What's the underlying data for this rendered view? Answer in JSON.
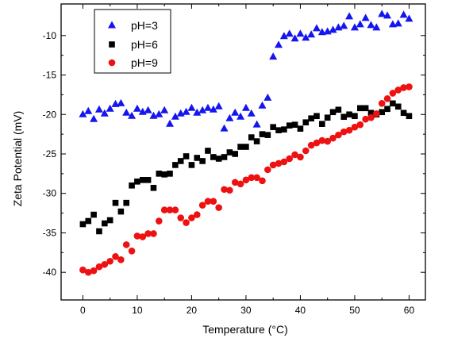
{
  "chart_data": {
    "type": "scatter",
    "title": "",
    "xlabel": "Temperature (°C)",
    "ylabel": "Zeta Potential (mV)",
    "xlim": [
      -4,
      63
    ],
    "ylim": [
      -43.5,
      -6
    ],
    "xticks": [
      0,
      10,
      20,
      30,
      40,
      50,
      60
    ],
    "yticks": [
      -40,
      -35,
      -30,
      -25,
      -20,
      -15,
      -10
    ],
    "legend_position": "top-left",
    "series": [
      {
        "name": "pH=3",
        "marker": "triangle",
        "color": "#1515f0",
        "points": [
          [
            0,
            -20
          ],
          [
            1,
            -19.6
          ],
          [
            2,
            -20.6
          ],
          [
            3,
            -19.4
          ],
          [
            4,
            -19.9
          ],
          [
            5,
            -19.3
          ],
          [
            6,
            -18.7
          ],
          [
            7,
            -18.6
          ],
          [
            8,
            -19.8
          ],
          [
            9,
            -20.2
          ],
          [
            10,
            -19.3
          ],
          [
            11,
            -19.7
          ],
          [
            12,
            -19.5
          ],
          [
            13,
            -20.2
          ],
          [
            14,
            -20
          ],
          [
            15,
            -19.5
          ],
          [
            16,
            -21.2
          ],
          [
            17,
            -20.3
          ],
          [
            18,
            -19.9
          ],
          [
            19,
            -19.7
          ],
          [
            20,
            -19.2
          ],
          [
            21,
            -19.8
          ],
          [
            22,
            -19.5
          ],
          [
            23,
            -19.2
          ],
          [
            24,
            -19.4
          ],
          [
            25,
            -19
          ],
          [
            26,
            -21.8
          ],
          [
            27,
            -20.5
          ],
          [
            28,
            -19.8
          ],
          [
            29,
            -20.3
          ],
          [
            30,
            -19.2
          ],
          [
            31,
            -19.9
          ],
          [
            32,
            -21.3
          ],
          [
            33,
            -18.9
          ],
          [
            34,
            -17.9
          ],
          [
            35,
            -12.7
          ],
          [
            36,
            -11.2
          ],
          [
            37,
            -10.1
          ],
          [
            38,
            -9.8
          ],
          [
            39,
            -10.4
          ],
          [
            40,
            -9.8
          ],
          [
            41,
            -10.3
          ],
          [
            42,
            -9.9
          ],
          [
            43,
            -9.1
          ],
          [
            44,
            -9.6
          ],
          [
            45,
            -9.5
          ],
          [
            46,
            -9.3
          ],
          [
            47,
            -9
          ],
          [
            48,
            -8.8
          ],
          [
            49,
            -7.6
          ],
          [
            50,
            -9
          ],
          [
            51,
            -8.6
          ],
          [
            52,
            -7.8
          ],
          [
            53,
            -8.7
          ],
          [
            54,
            -9
          ],
          [
            55,
            -7.3
          ],
          [
            56,
            -7.5
          ],
          [
            57,
            -8.6
          ],
          [
            58,
            -8.5
          ],
          [
            59,
            -7.4
          ],
          [
            60,
            -7.9
          ]
        ]
      },
      {
        "name": "pH=6",
        "marker": "square",
        "color": "#000000",
        "points": [
          [
            0,
            -33.9
          ],
          [
            1,
            -33.5
          ],
          [
            2,
            -32.7
          ],
          [
            3,
            -34.8
          ],
          [
            4,
            -33.8
          ],
          [
            5,
            -33.4
          ],
          [
            6,
            -31.2
          ],
          [
            7,
            -32.3
          ],
          [
            8,
            -31.2
          ],
          [
            9,
            -29
          ],
          [
            10,
            -28.5
          ],
          [
            11,
            -28.3
          ],
          [
            12,
            -28.3
          ],
          [
            13,
            -29.3
          ],
          [
            14,
            -27.5
          ],
          [
            15,
            -27.6
          ],
          [
            16,
            -27.5
          ],
          [
            17,
            -26.4
          ],
          [
            18,
            -25.9
          ],
          [
            19,
            -25.3
          ],
          [
            20,
            -26.4
          ],
          [
            21,
            -25.5
          ],
          [
            22,
            -25.9
          ],
          [
            23,
            -24.6
          ],
          [
            24,
            -25.4
          ],
          [
            25,
            -25.6
          ],
          [
            26,
            -25.4
          ],
          [
            27,
            -24.8
          ],
          [
            28,
            -25
          ],
          [
            29,
            -24.1
          ],
          [
            30,
            -24.1
          ],
          [
            31,
            -22.9
          ],
          [
            32,
            -23.4
          ],
          [
            33,
            -22.5
          ],
          [
            34,
            -22.6
          ],
          [
            35,
            -21.6
          ],
          [
            36,
            -22
          ],
          [
            37,
            -21.9
          ],
          [
            38,
            -21.4
          ],
          [
            39,
            -21.3
          ],
          [
            40,
            -21.8
          ],
          [
            41,
            -21
          ],
          [
            42,
            -20.5
          ],
          [
            43,
            -20.2
          ],
          [
            44,
            -21.2
          ],
          [
            45,
            -20.4
          ],
          [
            46,
            -19.7
          ],
          [
            47,
            -19.4
          ],
          [
            48,
            -20.3
          ],
          [
            49,
            -20
          ],
          [
            50,
            -20.2
          ],
          [
            51,
            -19.2
          ],
          [
            52,
            -19.2
          ],
          [
            53,
            -19.8
          ],
          [
            54,
            -20
          ],
          [
            55,
            -19.7
          ],
          [
            56,
            -19.3
          ],
          [
            57,
            -18.6
          ],
          [
            58,
            -19
          ],
          [
            59,
            -19.8
          ],
          [
            60,
            -20.2
          ]
        ]
      },
      {
        "name": "pH=9",
        "marker": "circle",
        "color": "#ee1111",
        "points": [
          [
            0,
            -39.7
          ],
          [
            1,
            -40
          ],
          [
            2,
            -39.8
          ],
          [
            3,
            -39.3
          ],
          [
            4,
            -39
          ],
          [
            5,
            -38.6
          ],
          [
            6,
            -38
          ],
          [
            7,
            -38.4
          ],
          [
            8,
            -36.5
          ],
          [
            9,
            -37.3
          ],
          [
            10,
            -35.4
          ],
          [
            11,
            -35.5
          ],
          [
            12,
            -35.1
          ],
          [
            13,
            -35.1
          ],
          [
            14,
            -33.5
          ],
          [
            15,
            -32.1
          ],
          [
            16,
            -32.1
          ],
          [
            17,
            -32.1
          ],
          [
            18,
            -33.1
          ],
          [
            19,
            -33.7
          ],
          [
            20,
            -33.1
          ],
          [
            21,
            -32.7
          ],
          [
            22,
            -31.5
          ],
          [
            23,
            -31
          ],
          [
            24,
            -31
          ],
          [
            25,
            -31.8
          ],
          [
            26,
            -29.5
          ],
          [
            27,
            -29.6
          ],
          [
            28,
            -28.6
          ],
          [
            29,
            -28.8
          ],
          [
            30,
            -28.3
          ],
          [
            31,
            -28
          ],
          [
            32,
            -28
          ],
          [
            33,
            -28.4
          ],
          [
            34,
            -27
          ],
          [
            35,
            -26.4
          ],
          [
            36,
            -26.2
          ],
          [
            37,
            -26
          ],
          [
            38,
            -25.6
          ],
          [
            39,
            -25.1
          ],
          [
            40,
            -25.4
          ],
          [
            41,
            -24.6
          ],
          [
            42,
            -23.9
          ],
          [
            43,
            -23.6
          ],
          [
            44,
            -23.3
          ],
          [
            45,
            -23.4
          ],
          [
            46,
            -23
          ],
          [
            47,
            -22.6
          ],
          [
            48,
            -22.2
          ],
          [
            49,
            -22
          ],
          [
            50,
            -21.6
          ],
          [
            51,
            -21.3
          ],
          [
            52,
            -20.6
          ],
          [
            53,
            -20.4
          ],
          [
            54,
            -19.9
          ],
          [
            55,
            -18.6
          ],
          [
            56,
            -18
          ],
          [
            57,
            -17.3
          ],
          [
            58,
            -16.9
          ],
          [
            59,
            -16.6
          ],
          [
            60,
            -16.5
          ]
        ]
      }
    ]
  }
}
